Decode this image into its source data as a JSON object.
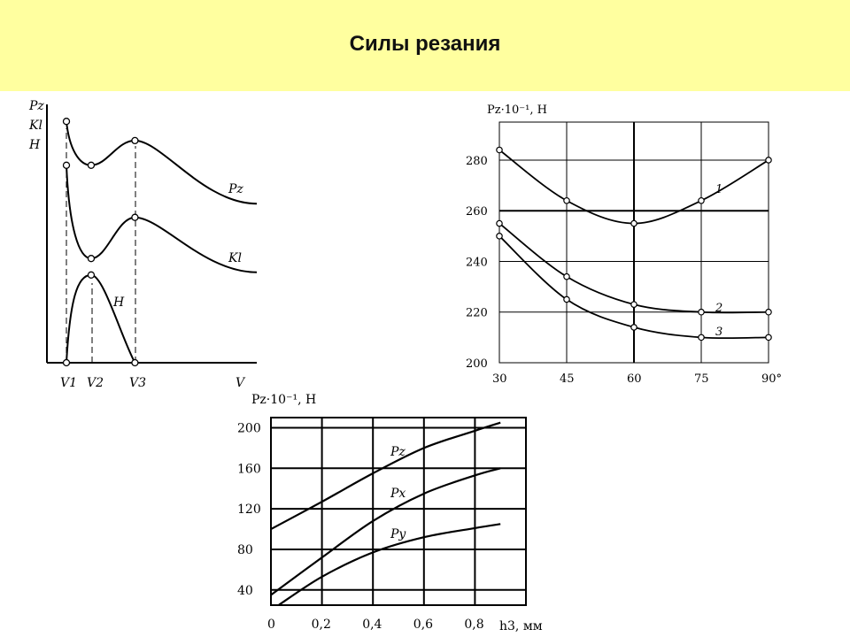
{
  "slide": {
    "title": "Силы резания",
    "banner_color": "#ffff9f"
  },
  "chart_data": [
    {
      "id": "chart-a",
      "type": "line",
      "ylabel_lines": [
        "Pz",
        "Kl",
        "H"
      ],
      "xlabel": "V",
      "x_ticks": [
        "V1",
        "V2",
        "V3"
      ],
      "series": [
        {
          "name": "Pz",
          "x": [
            0.0,
            0.13,
            0.36,
            1.0
          ],
          "y": [
            0.88,
            0.72,
            0.81,
            0.58
          ]
        },
        {
          "name": "Kl",
          "x": [
            0.0,
            0.13,
            0.36,
            1.0
          ],
          "y": [
            0.72,
            0.38,
            0.53,
            0.33
          ]
        },
        {
          "name": "H",
          "x": [
            0.0,
            0.13,
            0.36
          ],
          "y": [
            0.0,
            0.32,
            0.0
          ]
        }
      ]
    },
    {
      "id": "chart-b",
      "type": "line",
      "ylabel": "Pz·10⁻¹, Н",
      "x_ticks": [
        "30",
        "45",
        "60",
        "75",
        "90°"
      ],
      "y_ticks": [
        "200",
        "220",
        "240",
        "260",
        "280"
      ],
      "xlim": [
        30,
        90
      ],
      "ylim": [
        200,
        295
      ],
      "series": [
        {
          "name": "1",
          "x": [
            30,
            45,
            60,
            75,
            90
          ],
          "y": [
            284,
            264,
            255,
            264,
            280
          ]
        },
        {
          "name": "2",
          "x": [
            30,
            45,
            60,
            75,
            90
          ],
          "y": [
            255,
            234,
            223,
            220,
            220
          ]
        },
        {
          "name": "3",
          "x": [
            30,
            45,
            60,
            75,
            90
          ],
          "y": [
            250,
            225,
            214,
            210,
            210
          ]
        }
      ]
    },
    {
      "id": "chart-c",
      "type": "line",
      "ylabel": "Pz·10⁻¹, Н",
      "xlabel": "h3, мм",
      "x_ticks": [
        "0",
        "0,2",
        "0,4",
        "0,6",
        "0,8"
      ],
      "y_ticks": [
        "40",
        "80",
        "120",
        "160",
        "200"
      ],
      "xlim": [
        0,
        1.0
      ],
      "ylim": [
        25,
        210
      ],
      "series": [
        {
          "name": "Pz",
          "x": [
            0,
            0.2,
            0.4,
            0.6,
            0.8,
            0.9
          ],
          "y": [
            100,
            127,
            155,
            180,
            197,
            205
          ]
        },
        {
          "name": "Px",
          "x": [
            0,
            0.2,
            0.4,
            0.6,
            0.8,
            0.9
          ],
          "y": [
            35,
            72,
            108,
            135,
            153,
            160
          ]
        },
        {
          "name": "Py",
          "x": [
            0.03,
            0.2,
            0.4,
            0.6,
            0.8,
            0.9
          ],
          "y": [
            25,
            53,
            77,
            92,
            101,
            105
          ]
        }
      ]
    }
  ]
}
